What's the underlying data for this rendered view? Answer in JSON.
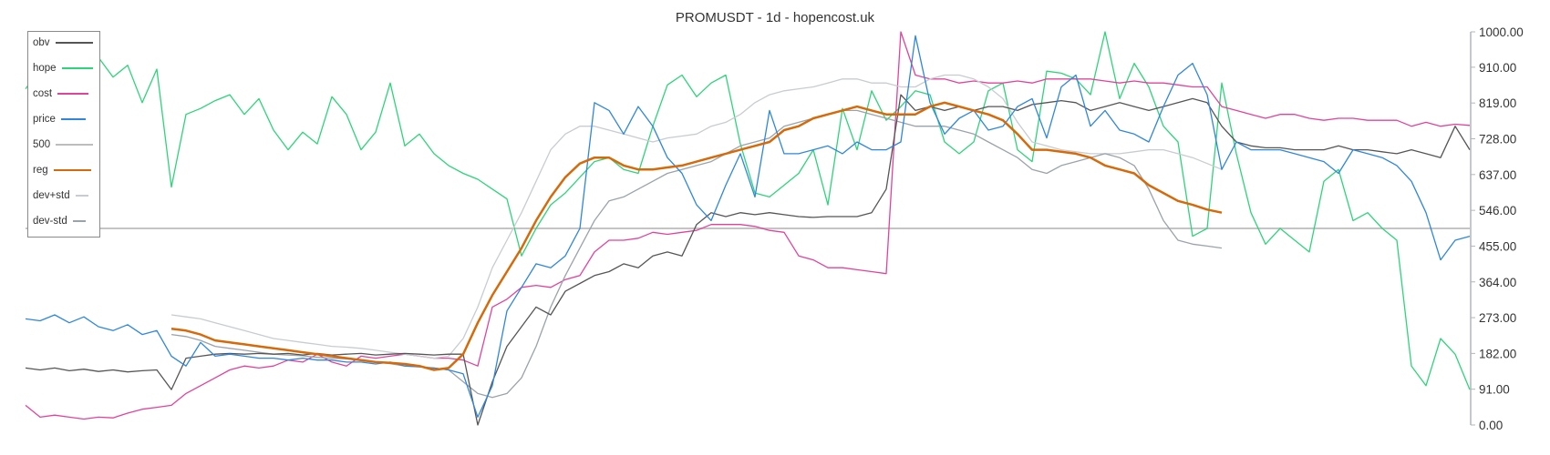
{
  "title": "PROMUSDT - 1d - hopencost.uk",
  "legend": [
    {
      "name": "obv",
      "color": "#555555",
      "width": 2
    },
    {
      "name": "hope",
      "color": "#2ed47a",
      "width": 2
    },
    {
      "name": "cost",
      "color": "#e0449a",
      "width": 2
    },
    {
      "name": "price",
      "color": "#2f86e0",
      "width": 2
    },
    {
      "name": "500",
      "color": "#bdbdbd",
      "width": 2
    },
    {
      "name": "reg",
      "color": "#d66a0a",
      "width": 3
    },
    {
      "name": "dev+std",
      "color": "#c8ccd0",
      "width": 2
    },
    {
      "name": "dev-std",
      "color": "#9aa3aa",
      "width": 2
    }
  ],
  "chart_data": {
    "type": "line",
    "title": "PROMUSDT - 1d - hopencost.uk",
    "xlabel": "",
    "ylabel": "",
    "ylim": [
      0,
      1000
    ],
    "y_ticks": [
      "1000.00",
      "910.00",
      "819.00",
      "728.00",
      "637.00",
      "546.00",
      "455.00",
      "364.00",
      "273.00",
      "182.00",
      "91.00",
      "0.00"
    ],
    "y_axis_position": "right",
    "grid": false,
    "legend_position": "top-left",
    "reference_line": {
      "name": "500",
      "value": 500
    },
    "x_count": 100,
    "series": [
      {
        "name": "hope",
        "color": "#2ed47a",
        "start": 0,
        "values": [
          855,
          905,
          870,
          915,
          905,
          935,
          885,
          915,
          820,
          905,
          605,
          790,
          805,
          825,
          840,
          790,
          830,
          750,
          700,
          745,
          715,
          835,
          790,
          700,
          745,
          870,
          710,
          740,
          690,
          660,
          640,
          625,
          600,
          575,
          430,
          500,
          560,
          590,
          630,
          670,
          680,
          650,
          640,
          760,
          865,
          890,
          835,
          870,
          890,
          715,
          590,
          580,
          610,
          640,
          700,
          560,
          805,
          700,
          850,
          775,
          810,
          850,
          840,
          720,
          690,
          720,
          850,
          870,
          700,
          670,
          900,
          895,
          880,
          840,
          1000,
          830,
          920,
          860,
          760,
          720,
          480,
          500,
          870,
          690,
          540,
          460,
          500,
          470,
          440,
          620,
          650,
          520,
          540,
          500,
          470,
          150,
          100,
          220,
          180,
          90
        ]
      },
      {
        "name": "price",
        "color": "#2f86e0",
        "start": 0,
        "values": [
          270,
          265,
          280,
          260,
          275,
          250,
          240,
          255,
          230,
          240,
          175,
          150,
          210,
          175,
          180,
          175,
          170,
          170,
          165,
          170,
          165,
          165,
          160,
          160,
          155,
          160,
          150,
          148,
          145,
          140,
          130,
          20,
          100,
          290,
          350,
          410,
          400,
          430,
          500,
          820,
          800,
          740,
          810,
          760,
          680,
          640,
          560,
          520,
          610,
          690,
          580,
          800,
          690,
          690,
          700,
          710,
          690,
          720,
          700,
          700,
          720,
          990,
          820,
          740,
          780,
          800,
          750,
          760,
          810,
          830,
          730,
          860,
          890,
          760,
          800,
          750,
          740,
          720,
          810,
          890,
          920,
          840,
          650,
          720,
          700,
          700,
          700,
          690,
          680,
          670,
          640,
          700,
          690,
          680,
          660,
          620,
          540,
          420,
          470,
          480
        ]
      },
      {
        "name": "obv",
        "color": "#555555",
        "start": 0,
        "values": [
          145,
          140,
          145,
          138,
          142,
          136,
          140,
          135,
          138,
          140,
          90,
          170,
          175,
          180,
          182,
          180,
          182,
          180,
          182,
          178,
          182,
          178,
          180,
          182,
          178,
          180,
          182,
          180,
          178,
          180,
          180,
          0,
          110,
          200,
          250,
          300,
          280,
          340,
          360,
          380,
          390,
          410,
          400,
          430,
          440,
          430,
          510,
          540,
          530,
          540,
          535,
          540,
          535,
          530,
          528,
          530,
          530,
          530,
          540,
          600,
          840,
          800,
          810,
          800,
          810,
          800,
          810,
          810,
          800,
          815,
          820,
          825,
          820,
          800,
          810,
          820,
          810,
          800,
          810,
          820,
          830,
          820,
          760,
          720,
          710,
          705,
          705,
          700,
          700,
          700,
          710,
          700,
          700,
          695,
          690,
          700,
          690,
          680,
          760,
          700
        ]
      },
      {
        "name": "cost",
        "color": "#e0449a",
        "start": 0,
        "values": [
          50,
          20,
          25,
          20,
          15,
          20,
          18,
          30,
          40,
          45,
          50,
          80,
          100,
          120,
          140,
          150,
          145,
          150,
          165,
          160,
          180,
          160,
          150,
          175,
          170,
          175,
          180,
          175,
          170,
          170,
          165,
          150,
          300,
          320,
          350,
          355,
          350,
          370,
          380,
          440,
          470,
          470,
          475,
          490,
          485,
          490,
          495,
          510,
          510,
          510,
          505,
          495,
          490,
          430,
          420,
          400,
          400,
          395,
          390,
          385,
          1000,
          890,
          880,
          880,
          870,
          875,
          870,
          870,
          875,
          870,
          880,
          880,
          880,
          880,
          875,
          870,
          875,
          870,
          870,
          865,
          860,
          860,
          810,
          800,
          790,
          780,
          790,
          790,
          780,
          775,
          780,
          780,
          775,
          775,
          775,
          760,
          770,
          760,
          765,
          762
        ]
      },
      {
        "name": "reg",
        "color": "#d66a0a",
        "start": 10,
        "values": [
          245,
          240,
          230,
          215,
          210,
          205,
          200,
          195,
          190,
          185,
          180,
          175,
          170,
          165,
          160,
          158,
          155,
          150,
          140,
          145,
          180,
          260,
          330,
          390,
          450,
          520,
          580,
          630,
          665,
          680,
          680,
          660,
          650,
          650,
          655,
          660,
          670,
          680,
          690,
          700,
          710,
          720,
          750,
          760,
          780,
          790,
          800,
          810,
          800,
          790,
          790,
          790,
          810,
          820,
          810,
          800,
          790,
          775,
          740,
          700,
          700,
          695,
          690,
          680,
          660,
          650,
          640,
          610,
          590,
          570,
          560,
          548,
          540
        ]
      },
      {
        "name": "dev+std",
        "color": "#c8ccd0",
        "start": 10,
        "values": [
          280,
          275,
          270,
          260,
          250,
          240,
          230,
          220,
          215,
          210,
          205,
          200,
          198,
          195,
          190,
          185,
          180,
          175,
          170,
          175,
          220,
          300,
          400,
          470,
          540,
          620,
          700,
          740,
          760,
          760,
          750,
          740,
          730,
          720,
          730,
          735,
          740,
          760,
          770,
          790,
          820,
          840,
          850,
          855,
          860,
          870,
          880,
          880,
          870,
          870,
          860,
          860,
          880,
          890,
          890,
          880,
          860,
          830,
          770,
          720,
          710,
          700,
          695,
          690,
          690,
          690,
          695,
          700,
          700,
          690,
          680,
          665,
          650
        ]
      },
      {
        "name": "dev-std",
        "color": "#9aa3aa",
        "start": 10,
        "values": [
          230,
          225,
          215,
          200,
          195,
          190,
          185,
          180,
          178,
          176,
          172,
          170,
          168,
          164,
          160,
          156,
          150,
          148,
          145,
          140,
          110,
          80,
          70,
          80,
          120,
          200,
          300,
          380,
          450,
          520,
          570,
          580,
          600,
          620,
          640,
          650,
          660,
          670,
          690,
          710,
          720,
          730,
          760,
          770,
          780,
          790,
          800,
          800,
          790,
          780,
          770,
          760,
          760,
          760,
          750,
          740,
          720,
          700,
          680,
          650,
          640,
          660,
          670,
          680,
          690,
          680,
          660,
          600,
          520,
          470,
          460,
          455,
          450
        ]
      }
    ]
  }
}
